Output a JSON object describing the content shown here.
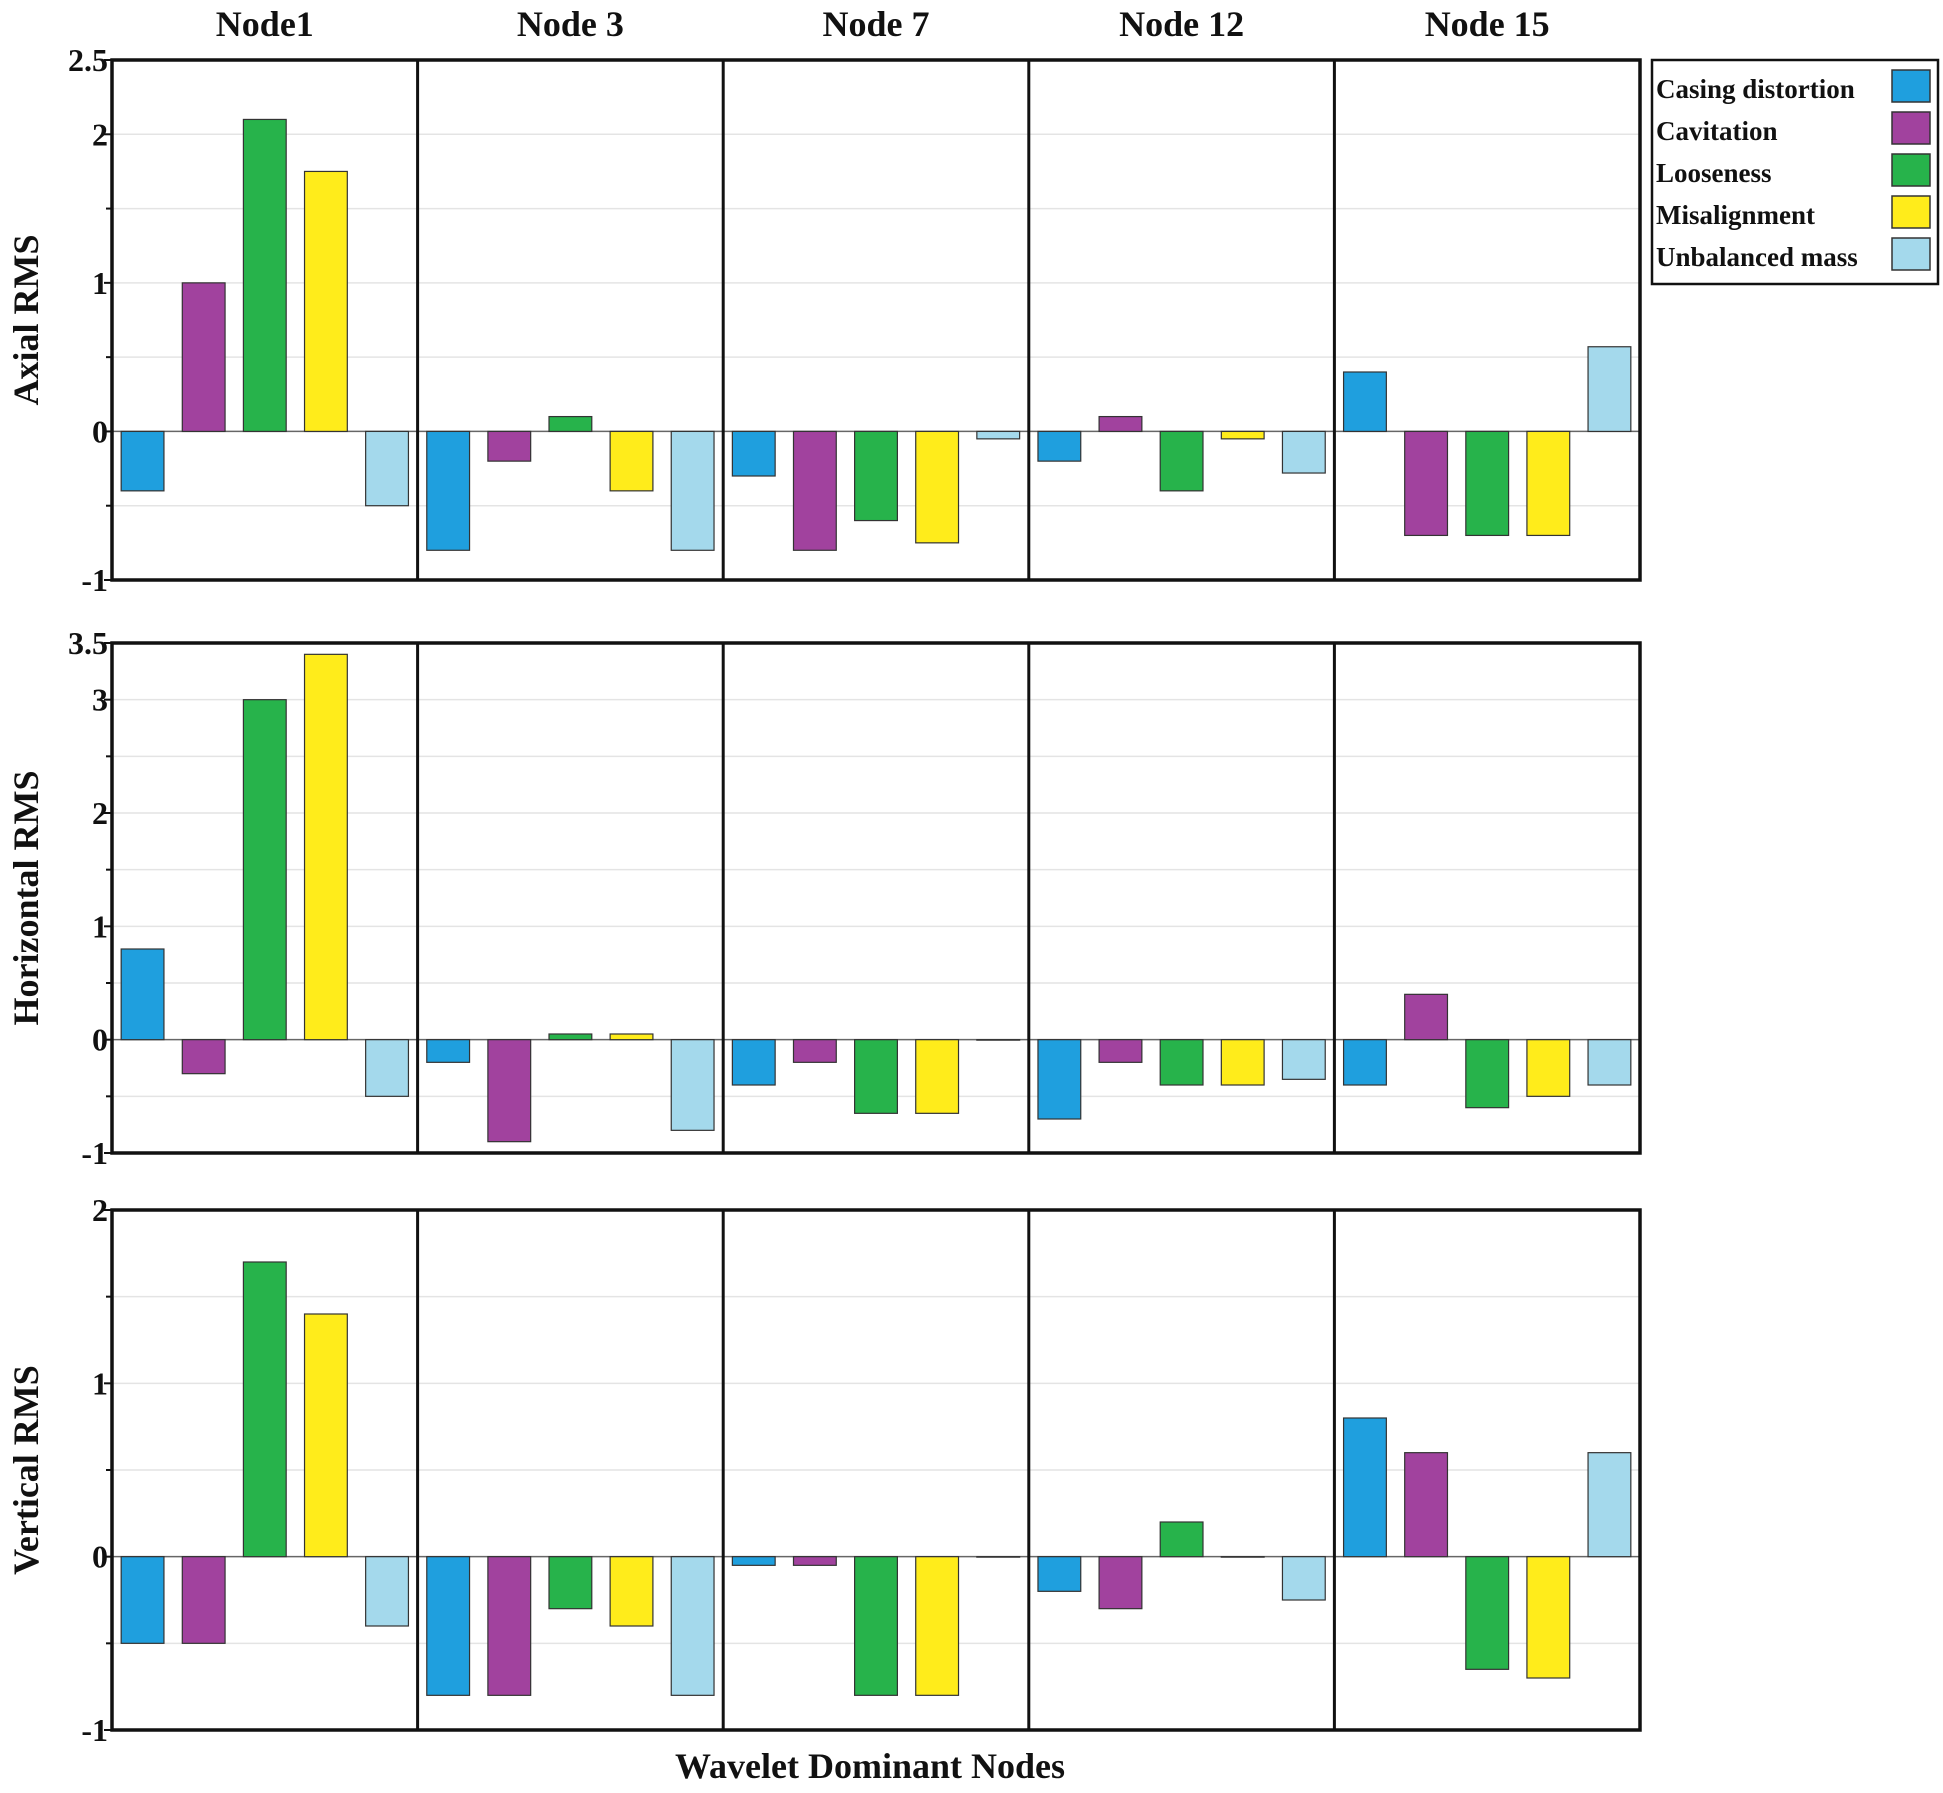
{
  "chart_data": {
    "type": "bar",
    "xlabel": "Wavelet Dominant Nodes",
    "categories": [
      "Node1",
      "Node 3",
      "Node 7",
      "Node 12",
      "Node 15"
    ],
    "legend": {
      "position": "top-right",
      "entries": [
        {
          "name": "Casing distortion",
          "color": "#1f9fde"
        },
        {
          "name": "Cavitation",
          "color": "#a1429e"
        },
        {
          "name": "Looseness",
          "color": "#27b34b"
        },
        {
          "name": "Misalignment",
          "color": "#ffec1b"
        },
        {
          "name": "Unbalanced mass",
          "color": "#a4d9ec"
        }
      ]
    },
    "panels": [
      {
        "ylabel": "Axial RMS",
        "ylim": [
          -1,
          2.5
        ],
        "yticks": [
          {
            "v": -1,
            "label": "-1"
          },
          {
            "v": 0,
            "label": "0"
          },
          {
            "v": 1,
            "label": "1"
          },
          {
            "v": 2,
            "label": "2"
          },
          {
            "v": 2.5,
            "label": "2.5"
          }
        ],
        "grid": [
          -0.5,
          0.5,
          1.5
        ],
        "values": [
          [
            -0.4,
            1.0,
            2.1,
            1.75,
            -0.5
          ],
          [
            -0.8,
            -0.2,
            0.1,
            -0.4,
            -0.8
          ],
          [
            -0.3,
            -0.8,
            -0.6,
            -0.75,
            -0.05
          ],
          [
            -0.2,
            0.1,
            -0.4,
            -0.05,
            -0.28
          ],
          [
            0.4,
            -0.7,
            -0.7,
            -0.7,
            0.57
          ]
        ]
      },
      {
        "ylabel": "Horizontal RMS",
        "ylim": [
          -1,
          3.5
        ],
        "yticks": [
          {
            "v": -1,
            "label": "-1"
          },
          {
            "v": 0,
            "label": "0"
          },
          {
            "v": 1,
            "label": "1"
          },
          {
            "v": 2,
            "label": "2"
          },
          {
            "v": 3,
            "label": "3"
          },
          {
            "v": 3.5,
            "label": "3.5"
          }
        ],
        "grid": [
          -0.5,
          0.5,
          1.5,
          2.5
        ],
        "values": [
          [
            0.8,
            -0.3,
            3.0,
            3.4,
            -0.5
          ],
          [
            -0.2,
            -0.9,
            0.05,
            0.05,
            -0.8
          ],
          [
            -0.4,
            -0.2,
            -0.65,
            -0.65,
            0.0
          ],
          [
            -0.7,
            -0.2,
            -0.4,
            -0.4,
            -0.35
          ],
          [
            -0.4,
            0.4,
            -0.6,
            -0.5,
            -0.4
          ]
        ]
      },
      {
        "ylabel": "Vertical RMS",
        "ylim": [
          -1,
          2
        ],
        "yticks": [
          {
            "v": -1,
            "label": "-1"
          },
          {
            "v": 0,
            "label": "0"
          },
          {
            "v": 1,
            "label": "1"
          },
          {
            "v": 2,
            "label": "2"
          }
        ],
        "grid": [
          -0.5,
          0.5,
          1.5
        ],
        "values": [
          [
            -0.5,
            -0.5,
            1.7,
            1.4,
            -0.4
          ],
          [
            -0.8,
            -0.8,
            -0.3,
            -0.4,
            -0.8
          ],
          [
            -0.05,
            -0.05,
            -0.8,
            -0.8,
            0.0
          ],
          [
            -0.2,
            -0.3,
            0.2,
            0.0,
            -0.25
          ],
          [
            0.8,
            0.6,
            -0.65,
            -0.7,
            0.6
          ]
        ]
      }
    ]
  }
}
